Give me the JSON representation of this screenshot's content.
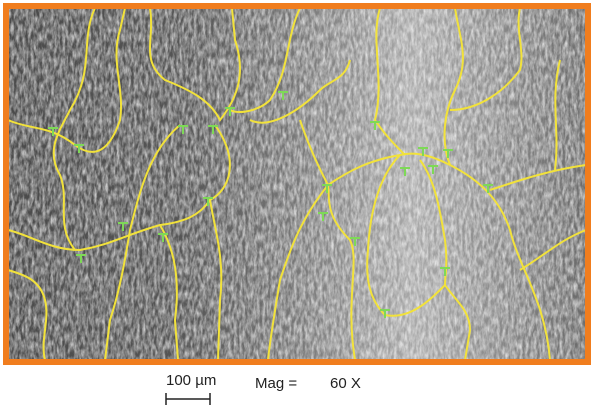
{
  "scale_bar": {
    "label": "100 µm"
  },
  "magnification": {
    "label": "Mag =",
    "value": "60 X"
  }
}
